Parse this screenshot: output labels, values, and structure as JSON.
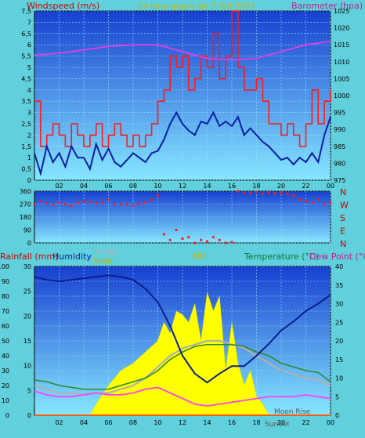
{
  "header": {
    "left_title": "Windspeed (m/s)",
    "center_title": "24 hour graph Sat 7.Oct 2023",
    "right_title": "Barometer (hpa)"
  },
  "colors": {
    "background": "#5fd0dc",
    "plot_top": "#1a4fd8",
    "plot_bottom": "#7fe4ff",
    "wind": "#ff1a1a",
    "gust": "#0b1fa0",
    "baro": "#e040e0",
    "temperature": "#2a8a2a",
    "dewpoint": "#ff40ff",
    "humidity": "#0d1d8a",
    "solar": "#ffff00",
    "thsw": "#b0b0b0",
    "rainfall": "#ff8c00",
    "uv": "#ff2020",
    "title_yellow": "#c8b400",
    "label_green": "#007b3a",
    "label_pink": "#c02090",
    "label_red": "#cc0000"
  },
  "chart_data": [
    {
      "type": "line",
      "id": "wind",
      "x_ticks": [
        "02",
        "04",
        "06",
        "08",
        "10",
        "12",
        "14",
        "16",
        "18",
        "20",
        "22",
        "00"
      ],
      "ylim_left": [
        0,
        7.5
      ],
      "ylim_right": [
        975,
        1025
      ],
      "y_ticks_left": [
        "0",
        "0,5",
        "1",
        "1,5",
        "2",
        "2,5",
        "3",
        "3,5",
        "4",
        "4,5",
        "5",
        "5,5",
        "6",
        "6,5",
        "7",
        "7,5"
      ],
      "y_ticks_right": [
        "975",
        "980",
        "985",
        "990",
        "995",
        "1000",
        "1005",
        "1010",
        "1015",
        "1020",
        "1025"
      ],
      "grid": true,
      "series": [
        {
          "name": "Windspeed (m/s)",
          "x": [
            0,
            0.5,
            1,
            1.5,
            2,
            2.5,
            3,
            3.5,
            4,
            4.5,
            5,
            5.5,
            6,
            6.5,
            7,
            7.5,
            8,
            8.5,
            9,
            9.5,
            10,
            10.5,
            11,
            11.5,
            12,
            12.5,
            13,
            13.5,
            14,
            14.5,
            15,
            15.5,
            16,
            16.5,
            17,
            17.5,
            18,
            18.5,
            19,
            19.5,
            20,
            20.5,
            21,
            21.5,
            22,
            22.5,
            23,
            23.5,
            24
          ],
          "values": [
            3.5,
            1.5,
            2,
            2.5,
            2,
            1.5,
            2.5,
            2,
            1.5,
            2,
            2.5,
            1.5,
            2,
            2.5,
            2,
            1.5,
            2,
            1.5,
            2,
            2.5,
            3.5,
            4,
            5.5,
            5,
            5.5,
            4,
            4.5,
            5.5,
            5,
            6.5,
            4.5,
            5.5,
            7.5,
            5,
            4,
            4,
            4.5,
            3.5,
            2.5,
            2.5,
            2,
            2.5,
            2,
            1.5,
            2.5,
            4,
            2.5,
            3.5,
            4
          ]
        },
        {
          "name": "Gust",
          "x": [
            0,
            0.5,
            1,
            1.5,
            2,
            2.5,
            3,
            3.5,
            4,
            4.5,
            5,
            5.5,
            6,
            6.5,
            7,
            7.5,
            8,
            8.5,
            9,
            9.5,
            10,
            10.5,
            11,
            11.5,
            12,
            12.5,
            13,
            13.5,
            14,
            14.5,
            15,
            15.5,
            16,
            16.5,
            17,
            17.5,
            18,
            18.5,
            19,
            19.5,
            20,
            20.5,
            21,
            21.5,
            22,
            22.5,
            23,
            23.5,
            24
          ],
          "values": [
            1.2,
            0.3,
            1.5,
            0.8,
            1.2,
            0.6,
            1.5,
            1,
            1,
            0.5,
            1.6,
            0.9,
            1.4,
            0.8,
            0.6,
            0.9,
            1.2,
            1,
            0.8,
            1.2,
            1.3,
            1.8,
            2.5,
            3,
            2.5,
            2.2,
            2,
            2.6,
            2.5,
            3,
            2.4,
            2.6,
            2.4,
            2.8,
            2,
            2.3,
            2,
            1.7,
            1.5,
            1.2,
            0.9,
            1,
            0.7,
            1,
            0.8,
            1.2,
            0.8,
            2,
            2.8
          ]
        },
        {
          "name": "Barometer (hpa)",
          "axis": "right",
          "x": [
            0,
            2,
            4,
            6,
            8,
            10,
            12,
            14,
            16,
            18,
            20,
            22,
            24
          ],
          "values": [
            1012,
            1012.5,
            1013.5,
            1014.5,
            1015,
            1015,
            1013,
            1011,
            1010.5,
            1011,
            1013,
            1015,
            1016
          ]
        }
      ]
    },
    {
      "type": "scatter",
      "id": "direction",
      "ylim": [
        0,
        360
      ],
      "y_ticks": [
        "0",
        "90",
        "180",
        "270",
        "360"
      ],
      "right_labels": [
        "N",
        "W",
        "S",
        "E",
        "N"
      ],
      "series": [
        {
          "name": "Wind direction",
          "x": [
            0,
            0.5,
            1,
            1.5,
            2,
            2.5,
            3,
            3.5,
            4,
            4.5,
            5,
            5.5,
            6,
            6.5,
            7,
            7.5,
            8,
            8.5,
            9,
            9.5,
            10,
            10.5,
            11,
            11.5,
            12,
            12.5,
            13,
            13.5,
            14,
            14.5,
            15,
            15.5,
            16,
            16.5,
            17,
            17.5,
            18,
            18.5,
            19,
            19.5,
            20,
            20.5,
            21,
            21.5,
            22,
            22.5,
            23,
            23.5,
            24
          ],
          "values": [
            270,
            290,
            275,
            265,
            280,
            270,
            260,
            280,
            290,
            285,
            275,
            280,
            300,
            270,
            265,
            270,
            260,
            275,
            280,
            300,
            330,
            60,
            20,
            90,
            30,
            40,
            0,
            20,
            10,
            40,
            20,
            0,
            5,
            360,
            345,
            350,
            355,
            340,
            350,
            345,
            350,
            340,
            330,
            300,
            290,
            280,
            300,
            270,
            280
          ]
        }
      ]
    },
    {
      "type": "area",
      "id": "climate",
      "ylim_humidity": [
        0,
        100
      ],
      "ylim_rain": [
        0,
        30
      ],
      "ylim_temp": [
        0,
        40
      ],
      "y_ticks_humidity": [
        "0",
        "10",
        "20",
        "30",
        "40",
        "50",
        "60",
        "70",
        "80",
        "90",
        "100"
      ],
      "y_ticks_rain": [
        "0",
        "5",
        "10",
        "15",
        "20",
        "25",
        "30"
      ],
      "y_ticks_temp": [
        "0",
        "5",
        "10",
        "15",
        "20",
        "25",
        "30",
        "35",
        "40"
      ],
      "x_ticks": [
        "02",
        "04",
        "06",
        "08",
        "10",
        "12",
        "14",
        "16",
        "18",
        "20",
        "22",
        "00"
      ],
      "labels": {
        "rainfall": "Rainfall (mm)",
        "humidity": "Humidity",
        "thsw": "THSW",
        "solar": "Solar",
        "uv": "UV",
        "temperature": "Temperature (°C)",
        "dewpoint": "Dew Point (°C)",
        "sunset": "SunSet",
        "moonrise": "Moon Rise"
      },
      "series": [
        {
          "name": "Humidity",
          "x": [
            0,
            1,
            2,
            3,
            4,
            5,
            6,
            7,
            8,
            9,
            10,
            11,
            12,
            13,
            14,
            15,
            16,
            17,
            18,
            19,
            20,
            21,
            22,
            23,
            24
          ],
          "values": [
            93,
            91,
            90,
            91,
            92,
            93,
            94,
            93,
            91,
            85,
            76,
            60,
            40,
            28,
            22,
            28,
            33,
            33,
            40,
            48,
            57,
            63,
            70,
            75,
            81
          ]
        },
        {
          "name": "Temperature (°C)",
          "x": [
            0,
            1,
            2,
            3,
            4,
            5,
            6,
            7,
            8,
            9,
            10,
            11,
            12,
            13,
            14,
            15,
            16,
            17,
            18,
            19,
            20,
            21,
            22,
            23,
            24
          ],
          "values": [
            9.5,
            9,
            8,
            7.5,
            7,
            7,
            7,
            8,
            9,
            10,
            12,
            15,
            17,
            18.5,
            19,
            19,
            19,
            18.5,
            17,
            16,
            14,
            13,
            12,
            11.5,
            9
          ]
        },
        {
          "name": "THSW",
          "x": [
            0,
            1,
            2,
            3,
            4,
            5,
            6,
            7,
            8,
            9,
            10,
            11,
            12,
            13,
            14,
            15,
            16,
            17,
            18,
            19,
            20,
            21,
            22,
            23,
            24
          ],
          "values": [
            8,
            7,
            6,
            6,
            5.5,
            6,
            6,
            7,
            8,
            10,
            13,
            16,
            18,
            19,
            20,
            20,
            19,
            18,
            16,
            14,
            12,
            11,
            10,
            9.5,
            8
          ]
        },
        {
          "name": "Dew Point (°C)",
          "x": [
            0,
            1,
            2,
            3,
            4,
            5,
            6,
            7,
            8,
            9,
            10,
            11,
            12,
            13,
            14,
            15,
            16,
            17,
            18,
            19,
            20,
            21,
            22,
            23,
            24
          ],
          "values": [
            6.5,
            5.5,
            5,
            5,
            5.5,
            6,
            5.5,
            5.5,
            6,
            7,
            7.5,
            6,
            4.5,
            3,
            2.5,
            3,
            3.5,
            4,
            4.5,
            5,
            5,
            5,
            5.5,
            5,
            4.5
          ]
        },
        {
          "name": "Solar",
          "x": [
            4.5,
            5,
            6,
            7,
            8,
            9,
            10,
            10.5,
            11,
            11.5,
            12,
            12.5,
            13,
            13.5,
            14,
            14.5,
            15,
            15.5,
            16,
            16.5,
            17,
            17.5,
            18,
            18.5,
            19
          ],
          "values": [
            0,
            3,
            8,
            12,
            14,
            17,
            20,
            25,
            22,
            28,
            27,
            25,
            30,
            20,
            33,
            28,
            32,
            12,
            25,
            14,
            8,
            12,
            5,
            3,
            0
          ]
        },
        {
          "name": "Rainfall (mm)",
          "x": [
            0,
            24
          ],
          "values": [
            0,
            0
          ]
        },
        {
          "name": "UV",
          "x": [
            0,
            24
          ],
          "values": [
            0,
            0
          ]
        }
      ]
    }
  ]
}
